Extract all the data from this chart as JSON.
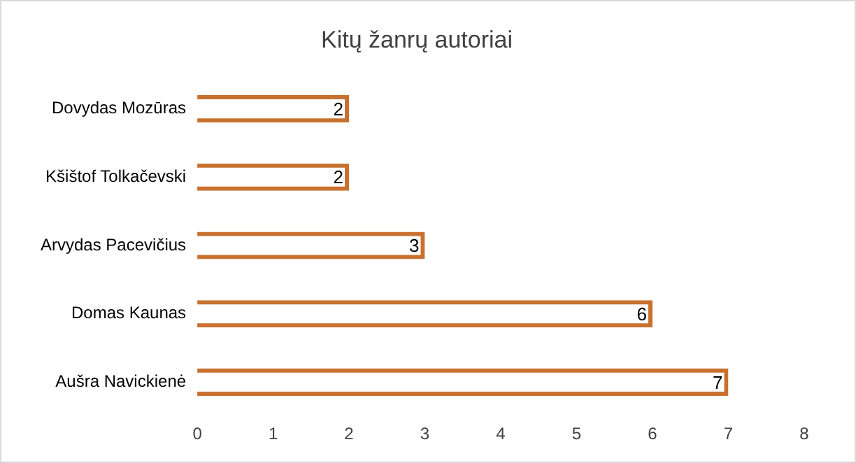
{
  "chart_data": {
    "type": "bar",
    "orientation": "horizontal",
    "title": "Kitų žanrų autoriai",
    "categories": [
      "Dovydas Mozūras",
      "Kšištof Tolkačevski",
      "Arvydas Pacevičius",
      "Domas Kaunas",
      "Aušra Navickienė"
    ],
    "values": [
      2,
      2,
      3,
      6,
      7
    ],
    "color": "#c8712f",
    "xlim": [
      0,
      8
    ],
    "xticks": [
      0,
      1,
      2,
      3,
      4,
      5,
      6,
      7,
      8
    ],
    "grid": false,
    "legend": false,
    "data_labels": true
  }
}
